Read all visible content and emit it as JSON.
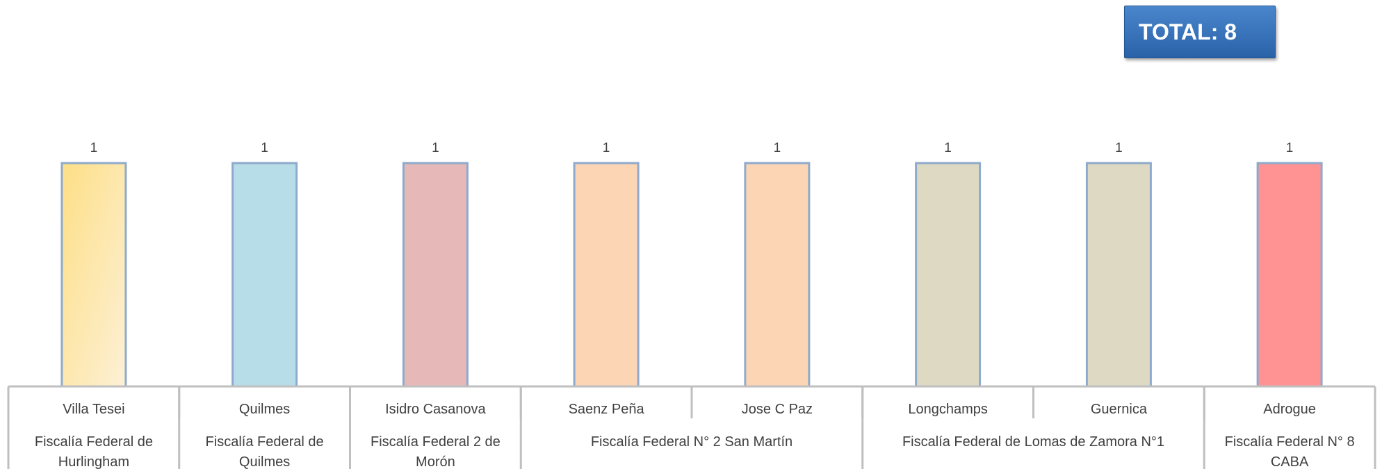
{
  "total": {
    "label": "TOTAL:",
    "value": "8"
  },
  "chart_data": {
    "type": "bar",
    "title": "",
    "xlabel": "",
    "ylabel": "",
    "ylim": [
      0,
      1.14
    ],
    "grid": false,
    "legend": "none",
    "categories": [
      "Villa Tesei",
      "Quilmes",
      "Isidro Casanova",
      "Saenz Peña",
      "Jose C Paz",
      "Longchamps",
      "Guernica",
      "Adrogue"
    ],
    "values": [
      1,
      1,
      1,
      1,
      1,
      1,
      1,
      1
    ],
    "data_labels": [
      "1",
      "1",
      "1",
      "1",
      "1",
      "1",
      "1",
      "1"
    ],
    "bar_colors": [
      [
        "#fddf86",
        "#fdf0d6"
      ],
      [
        "#b7dde8",
        "#b7dde8"
      ],
      [
        "#e6b9b8",
        "#e6b9b8"
      ],
      [
        "#fcd5b5",
        "#fcd5b5"
      ],
      [
        "#fcd5b5",
        "#fcd5b5"
      ],
      [
        "#ddd9c3",
        "#ddd9c3"
      ],
      [
        "#ddd9c3",
        "#ddd9c3"
      ],
      [
        "#ff9393",
        "#ff9393"
      ]
    ],
    "bar_edge_color": "#8eaacc",
    "groups": [
      {
        "label": [
          "Fiscalía Federal de",
          "Hurlingham"
        ],
        "span": 1
      },
      {
        "label": [
          "Fiscalía Federal de",
          "Quilmes"
        ],
        "span": 1
      },
      {
        "label": [
          "Fiscalía Federal 2 de",
          "Morón"
        ],
        "span": 1
      },
      {
        "label": [
          "Fiscalía Federal N° 2 San Martín"
        ],
        "span": 2
      },
      {
        "label": [
          "Fiscalía Federal de Lomas de Zamora N°1"
        ],
        "span": 2
      },
      {
        "label": [
          "Fiscalía Federal N° 8",
          "CABA"
        ],
        "span": 1
      }
    ]
  }
}
